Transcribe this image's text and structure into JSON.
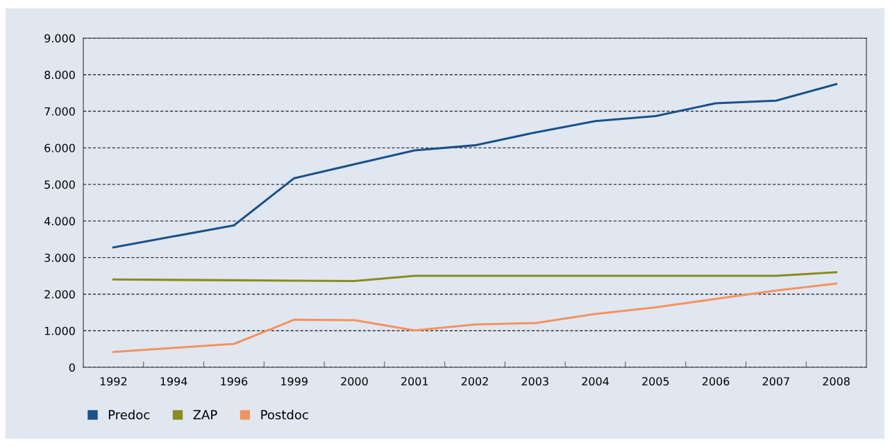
{
  "chart_data": {
    "type": "line",
    "categories": [
      "1992",
      "1994",
      "1996",
      "1999",
      "2000",
      "2001",
      "2002",
      "2003",
      "2004",
      "2005",
      "2006",
      "2007",
      "2008"
    ],
    "series": [
      {
        "name": "Predoc",
        "color": "#1b5289",
        "values": [
          3280,
          3580,
          3880,
          5170,
          5550,
          5930,
          6070,
          6420,
          6730,
          6870,
          7220,
          7290,
          7740
        ]
      },
      {
        "name": "ZAP",
        "color": "#8a8c1e",
        "values": [
          2400,
          2390,
          2380,
          2370,
          2360,
          2500,
          2500,
          2500,
          2500,
          2500,
          2500,
          2500,
          2600
        ]
      },
      {
        "name": "Postdoc",
        "color": "#f4935f",
        "values": [
          420,
          530,
          640,
          1300,
          1290,
          1010,
          1170,
          1210,
          1460,
          1640,
          1870,
          2100,
          2290
        ]
      }
    ],
    "ylim": [
      0,
      9000
    ],
    "yticks": [
      {
        "value": 0,
        "label": "0"
      },
      {
        "value": 1000,
        "label": "1.000"
      },
      {
        "value": 2000,
        "label": "2.000"
      },
      {
        "value": 3000,
        "label": "3.000"
      },
      {
        "value": 4000,
        "label": "4.000"
      },
      {
        "value": 5000,
        "label": "5.000"
      },
      {
        "value": 6000,
        "label": "6.000"
      },
      {
        "value": 7000,
        "label": "7.000"
      },
      {
        "value": 8000,
        "label": "8.000"
      },
      {
        "value": 9000,
        "label": "9.000"
      }
    ],
    "grid": "y",
    "legend": "bottom left",
    "marker": "none",
    "line_style": "solid"
  }
}
